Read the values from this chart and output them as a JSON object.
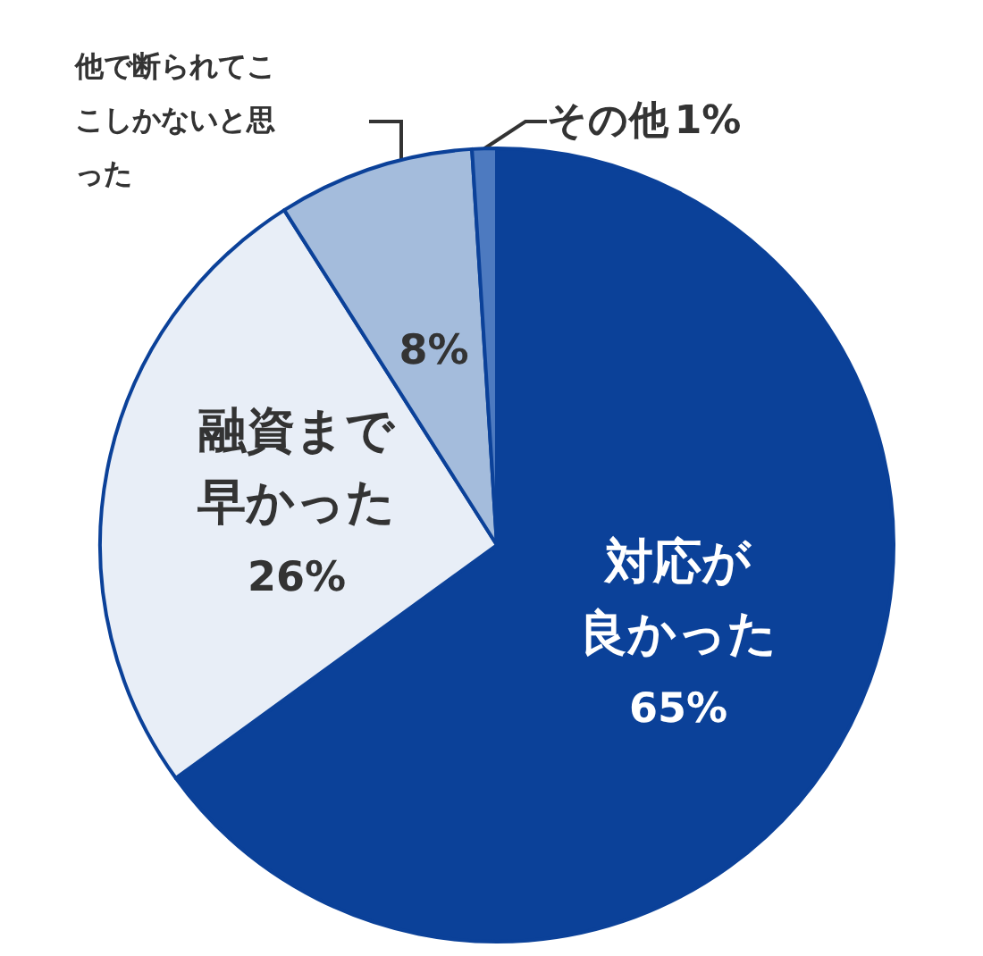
{
  "chart_data": {
    "type": "pie",
    "categories": [
      "対応が良かった",
      "融資まで早かった",
      "他で断られてここしかないと思った",
      "その他"
    ],
    "values": [
      65,
      26,
      8,
      1
    ],
    "value_labels": [
      "65%",
      "26%",
      "8%",
      "1%"
    ],
    "colors": [
      "#0b4199",
      "#e8eef7",
      "#a4bcdc",
      "#4d7ac0"
    ]
  }
}
